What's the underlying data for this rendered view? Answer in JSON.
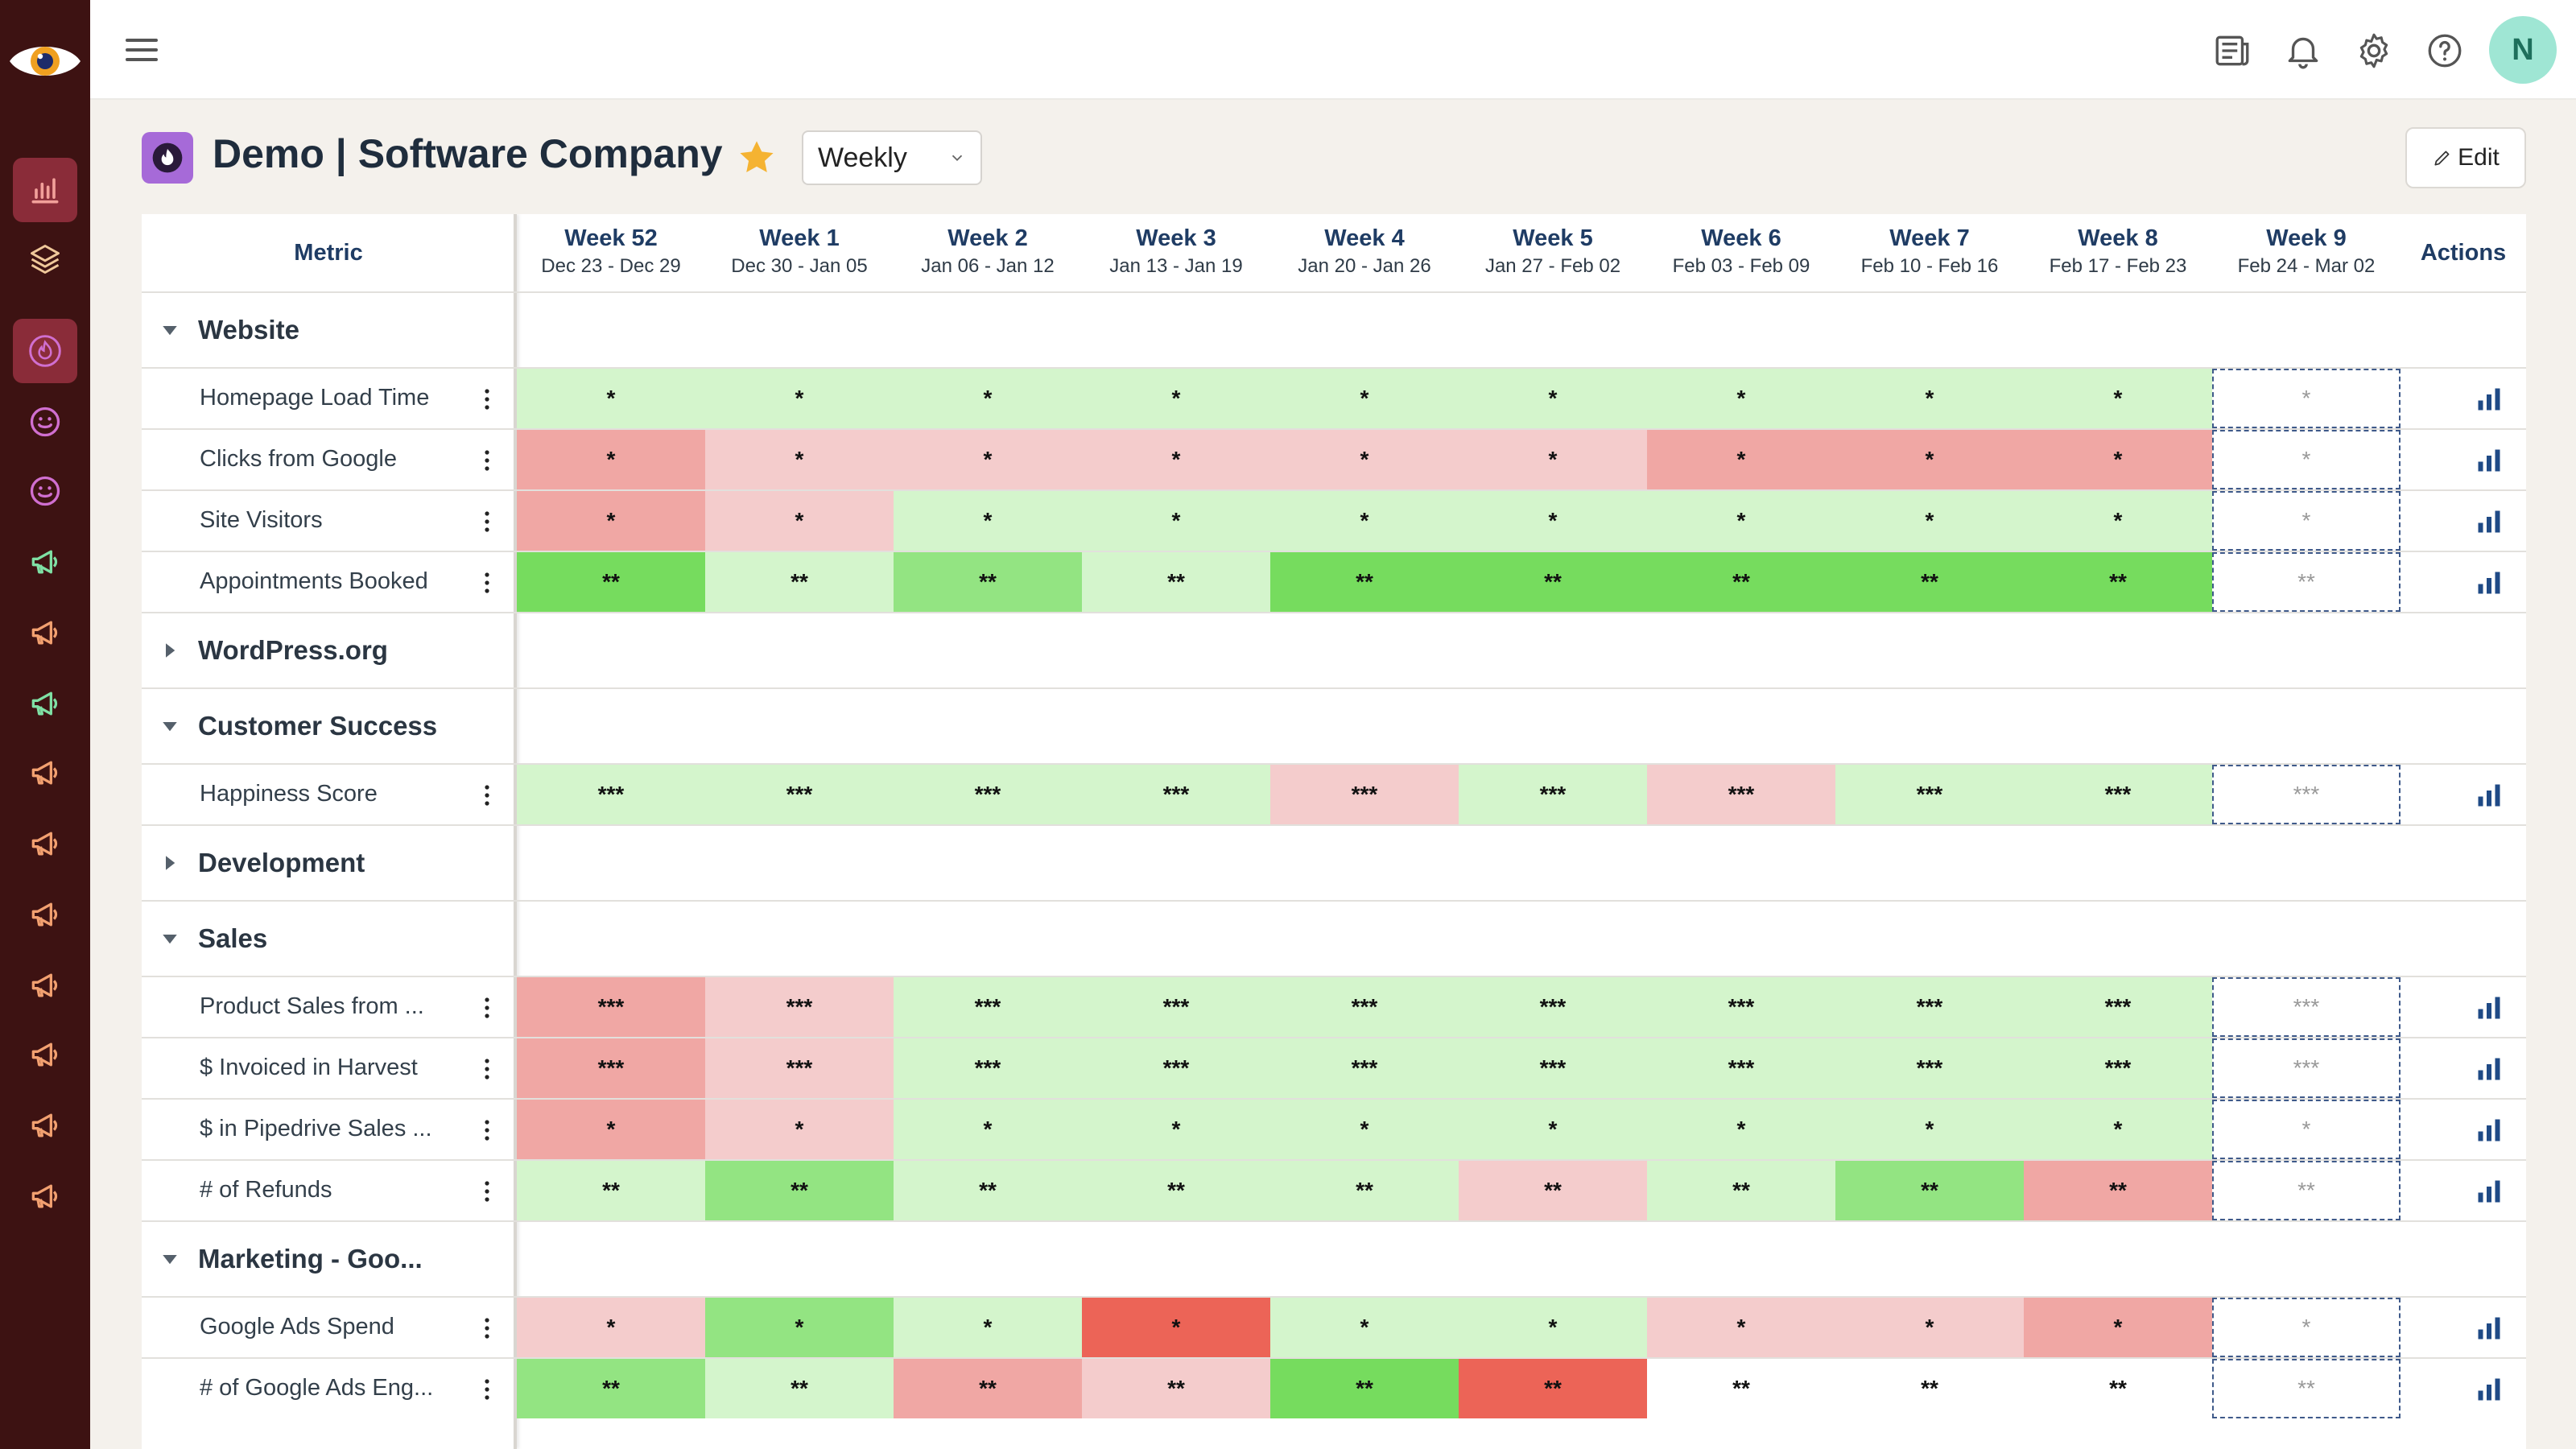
{
  "app": {
    "title": "Demo | Software Company",
    "period": "Weekly",
    "edit_label": "Edit",
    "avatar_initial": "N"
  },
  "colors": {
    "sidebar": "#3d1212",
    "green_light": "#d4f5cc",
    "green_mid": "#93e482",
    "green_strong": "#76dc5e",
    "red_light": "#f4cccc",
    "red_mid": "#f0a7a4",
    "red_strong": "#ec6457"
  },
  "sidebar_icons": [
    "eye-logo-icon",
    "bar-chart-icon",
    "layers-icon",
    "fire-icon",
    "smile-icon",
    "smile-icon",
    "megaphone-icon",
    "megaphone-icon",
    "megaphone-icon",
    "megaphone-icon",
    "megaphone-icon",
    "megaphone-icon",
    "megaphone-icon",
    "megaphone-icon",
    "megaphone-icon",
    "megaphone-icon"
  ],
  "topbar_icons": [
    "newspaper-icon",
    "bell-icon",
    "gear-icon",
    "help-icon"
  ],
  "table": {
    "metric_header": "Metric",
    "actions_header": "Actions",
    "weeks": [
      {
        "label": "Week 52",
        "dates": "Dec 23 - Dec 29"
      },
      {
        "label": "Week 1",
        "dates": "Dec 30 - Jan 05"
      },
      {
        "label": "Week 2",
        "dates": "Jan 06 - Jan 12"
      },
      {
        "label": "Week 3",
        "dates": "Jan 13 - Jan 19"
      },
      {
        "label": "Week 4",
        "dates": "Jan 20 - Jan 26"
      },
      {
        "label": "Week 5",
        "dates": "Jan 27 - Feb 02"
      },
      {
        "label": "Week 6",
        "dates": "Feb 03 - Feb 09"
      },
      {
        "label": "Week 7",
        "dates": "Feb 10 - Feb 16"
      },
      {
        "label": "Week 8",
        "dates": "Feb 17 - Feb 23"
      },
      {
        "label": "Week 9",
        "dates": "Feb 24 - Mar 02"
      }
    ],
    "rows": [
      {
        "type": "group",
        "name": "Website",
        "expanded": true
      },
      {
        "type": "metric",
        "name": "Homepage Load Time",
        "mask": "*",
        "status": [
          "gl",
          "gl",
          "gl",
          "gl",
          "gl",
          "gl",
          "gl",
          "gl",
          "gl"
        ]
      },
      {
        "type": "metric",
        "name": "Clicks from Google",
        "mask": "*",
        "status": [
          "rm",
          "rl",
          "rl",
          "rl",
          "rl",
          "rl",
          "rm",
          "rm",
          "rm"
        ]
      },
      {
        "type": "metric",
        "name": "Site Visitors",
        "mask": "*",
        "status": [
          "rm",
          "rl",
          "gl",
          "gl",
          "gl",
          "gl",
          "gl",
          "gl",
          "gl"
        ]
      },
      {
        "type": "metric",
        "name": "Appointments Booked",
        "mask": "**",
        "status": [
          "gs",
          "gl",
          "gm",
          "gl",
          "gs",
          "gs",
          "gs",
          "gs",
          "gs"
        ]
      },
      {
        "type": "group",
        "name": "WordPress.org",
        "expanded": false
      },
      {
        "type": "group",
        "name": "Customer Success",
        "expanded": true
      },
      {
        "type": "metric",
        "name": "Happiness Score",
        "mask": "***",
        "status": [
          "gl",
          "gl",
          "gl",
          "gl",
          "rl",
          "gl",
          "rl",
          "gl",
          "gl"
        ]
      },
      {
        "type": "group",
        "name": "Development",
        "expanded": false
      },
      {
        "type": "group",
        "name": "Sales",
        "expanded": true
      },
      {
        "type": "metric",
        "name": "Product Sales from ...",
        "mask": "***",
        "status": [
          "rm",
          "rl",
          "gl",
          "gl",
          "gl",
          "gl",
          "gl",
          "gl",
          "gl"
        ]
      },
      {
        "type": "metric",
        "name": "$ Invoiced in Harvest",
        "mask": "***",
        "status": [
          "rm",
          "rl",
          "gl",
          "gl",
          "gl",
          "gl",
          "gl",
          "gl",
          "gl"
        ]
      },
      {
        "type": "metric",
        "name": "$ in Pipedrive Sales ...",
        "mask": "*",
        "status": [
          "rm",
          "rl",
          "gl",
          "gl",
          "gl",
          "gl",
          "gl",
          "gl",
          "gl"
        ]
      },
      {
        "type": "metric",
        "name": "# of Refunds",
        "mask": "**",
        "status": [
          "gl",
          "gm",
          "gl",
          "gl",
          "gl",
          "rl",
          "gl",
          "gm",
          "rm"
        ]
      },
      {
        "type": "group",
        "name": "Marketing - Goo...",
        "expanded": true
      },
      {
        "type": "metric",
        "name": "Google Ads Spend",
        "mask": "*",
        "status": [
          "rl",
          "gm",
          "gl",
          "rs",
          "gl",
          "gl",
          "rl",
          "rl",
          "rm"
        ]
      },
      {
        "type": "metric",
        "name": "# of Google Ads Eng...",
        "mask": "**",
        "status": [
          "gm",
          "gl",
          "rm",
          "rl",
          "gs",
          "rs",
          "w",
          "w",
          "w"
        ]
      }
    ]
  }
}
